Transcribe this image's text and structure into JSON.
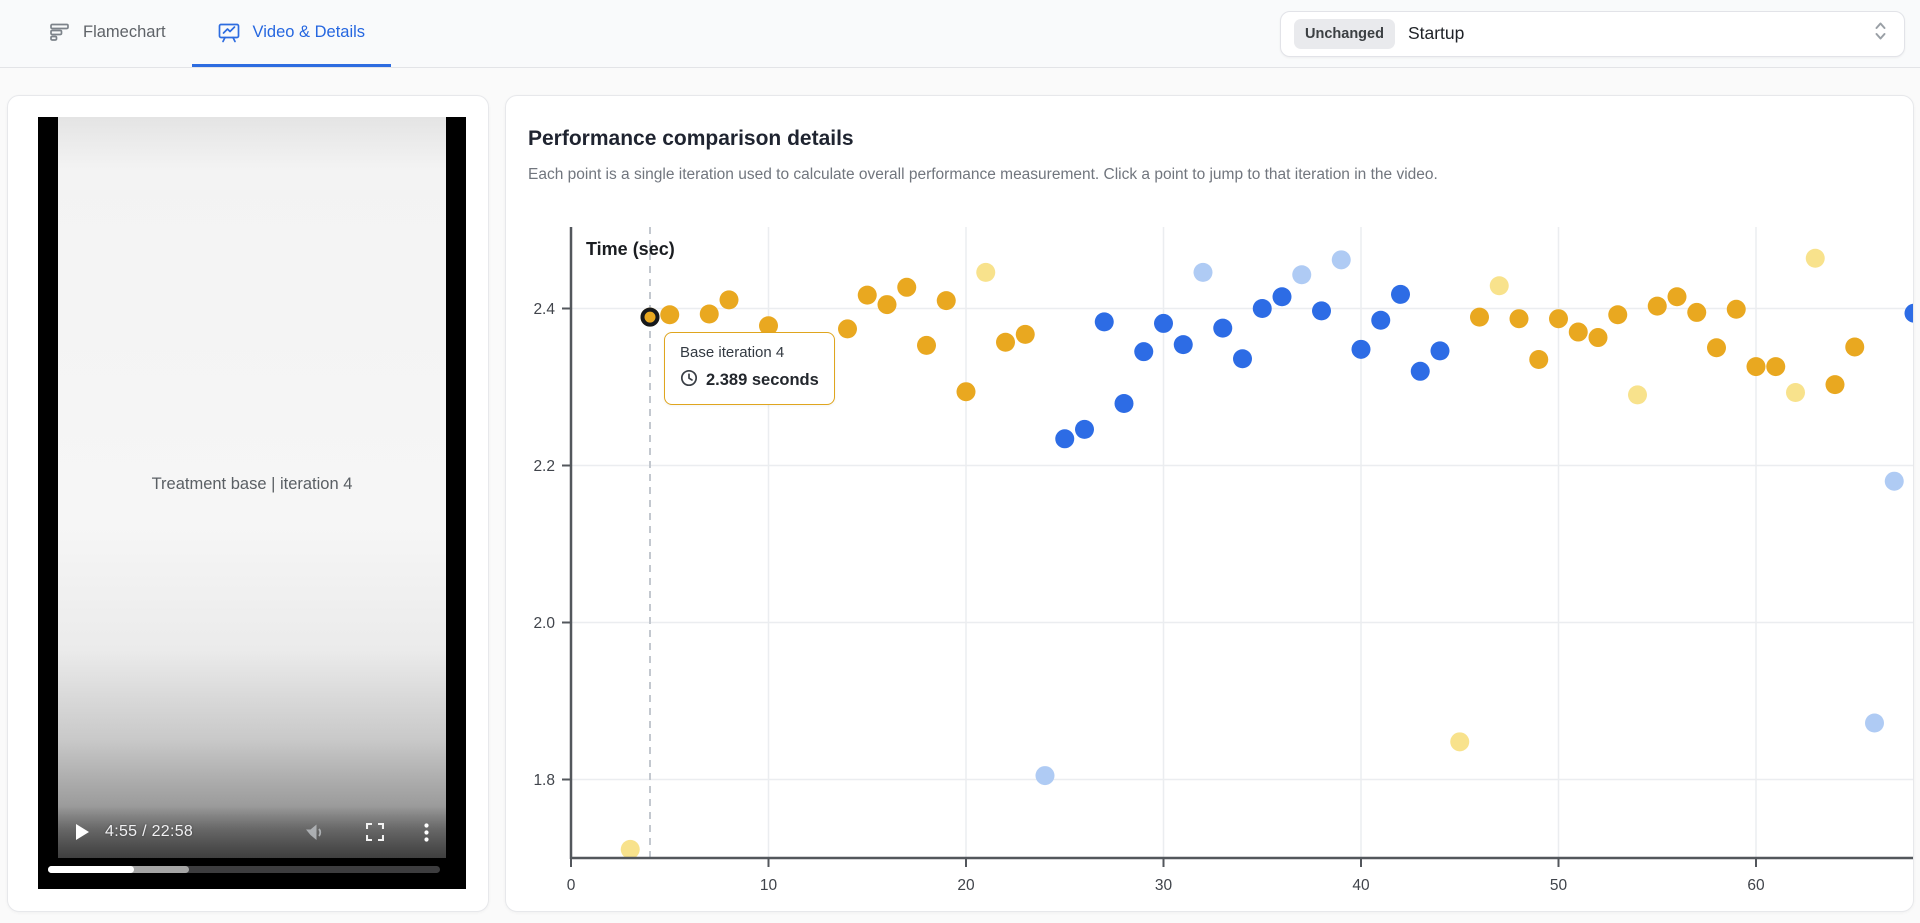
{
  "header": {
    "tabs": [
      {
        "label": "Flamechart",
        "active": false
      },
      {
        "label": "Video & Details",
        "active": true
      }
    ],
    "selector": {
      "badge": "Unchanged",
      "value": "Startup"
    }
  },
  "video": {
    "overlay_title": "Treatment base | iteration 4",
    "time": "4:55 / 22:58",
    "progress_percent": 22,
    "buffer_percent": 36
  },
  "details": {
    "title": "Performance comparison details",
    "subtitle": "Each point is a single iteration used to calculate overall performance measurement. Click a point to jump to that iteration in the video."
  },
  "tooltip": {
    "title": "Base iteration 4",
    "value": "2.389 seconds"
  },
  "chart_data": {
    "type": "scatter",
    "title": "",
    "xlabel": "",
    "ylabel": "Time (sec)",
    "x_ticks": [
      0,
      10,
      20,
      30,
      40,
      50,
      60
    ],
    "y_ticks": [
      2.4,
      2.2,
      2.0,
      1.8
    ],
    "xlim": [
      0,
      68.3
    ],
    "ylim": [
      1.7,
      2.505
    ],
    "grid": true,
    "legend": false,
    "colors": {
      "base": "#E9A820",
      "base_faded": "#F8E28C",
      "treatment": "#2D6CE5",
      "treatment_faded": "#AFCBF4",
      "selected_ring": "#16191d",
      "grid": "#ebedf0",
      "axis": "#53575c",
      "tick_label": "#40444b",
      "dashed_line": "#c3c8cf"
    },
    "selected": {
      "x": 4,
      "y": 2.389,
      "series": "base"
    },
    "series": [
      {
        "name": "base",
        "points": [
          [
            4,
            2.389
          ],
          [
            5,
            2.392
          ],
          [
            7,
            2.393
          ],
          [
            8,
            2.411
          ],
          [
            10,
            2.378
          ],
          [
            14,
            2.374
          ],
          [
            15,
            2.417
          ],
          [
            16,
            2.405
          ],
          [
            17,
            2.427
          ],
          [
            18,
            2.353
          ],
          [
            19,
            2.41
          ],
          [
            20,
            2.294
          ],
          [
            22,
            2.357
          ],
          [
            23,
            2.367
          ],
          [
            46,
            2.389
          ],
          [
            48,
            2.387
          ],
          [
            49,
            2.335
          ],
          [
            50,
            2.387
          ],
          [
            51,
            2.37
          ],
          [
            52,
            2.363
          ],
          [
            53,
            2.392
          ],
          [
            55,
            2.403
          ],
          [
            56,
            2.415
          ],
          [
            57,
            2.395
          ],
          [
            58,
            2.35
          ],
          [
            59,
            2.399
          ],
          [
            60,
            2.326
          ],
          [
            61,
            2.326
          ],
          [
            64,
            2.303
          ],
          [
            65,
            2.351
          ]
        ]
      },
      {
        "name": "base_faded",
        "points": [
          [
            3,
            1.711
          ],
          [
            21,
            2.446
          ],
          [
            45,
            1.848
          ],
          [
            47,
            2.429
          ],
          [
            54,
            2.29
          ],
          [
            62,
            2.293
          ],
          [
            63,
            2.464
          ]
        ]
      },
      {
        "name": "treatment",
        "points": [
          [
            25,
            2.234
          ],
          [
            26,
            2.246
          ],
          [
            27,
            2.383
          ],
          [
            28,
            2.279
          ],
          [
            29,
            2.345
          ],
          [
            30,
            2.381
          ],
          [
            31,
            2.354
          ],
          [
            33,
            2.375
          ],
          [
            34,
            2.336
          ],
          [
            35,
            2.4
          ],
          [
            36,
            2.415
          ],
          [
            38,
            2.397
          ],
          [
            40,
            2.348
          ],
          [
            41,
            2.385
          ],
          [
            42,
            2.418
          ],
          [
            43,
            2.32
          ],
          [
            44,
            2.346
          ],
          [
            68,
            2.394
          ]
        ]
      },
      {
        "name": "treatment_faded",
        "points": [
          [
            24,
            1.805
          ],
          [
            32,
            2.446
          ],
          [
            37,
            2.443
          ],
          [
            39,
            2.462
          ],
          [
            66,
            1.872
          ],
          [
            67,
            2.18
          ]
        ]
      }
    ]
  }
}
